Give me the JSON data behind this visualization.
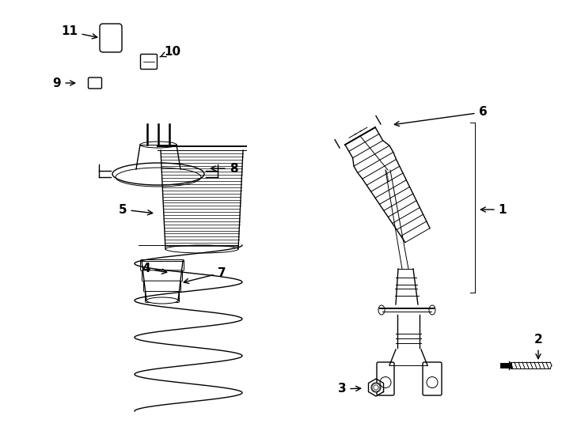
{
  "bg_color": "#ffffff",
  "line_color": "#000000",
  "label_color": "#000000",
  "fig_width": 7.34,
  "fig_height": 5.4,
  "dpi": 100
}
